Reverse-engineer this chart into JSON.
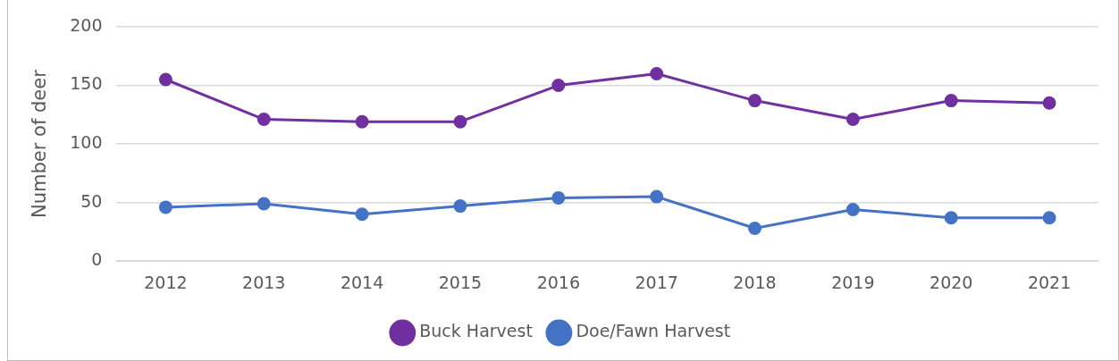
{
  "chart_data": {
    "type": "line",
    "ylabel": "Number of deer",
    "categories": [
      "2012",
      "2013",
      "2014",
      "2015",
      "2016",
      "2017",
      "2018",
      "2019",
      "2020",
      "2021"
    ],
    "series": [
      {
        "name": "Buck Harvest",
        "color": "#7030a0",
        "values": [
          155,
          121,
          119,
          119,
          150,
          160,
          137,
          121,
          137,
          135
        ]
      },
      {
        "name": "Doe/Fawn Harvest",
        "color": "#4472c4",
        "values": [
          46,
          49,
          40,
          47,
          54,
          55,
          28,
          44,
          37,
          37
        ]
      }
    ],
    "ylim": [
      0,
      200
    ],
    "yticks": [
      0,
      50,
      100,
      150,
      200
    ],
    "grid": "y",
    "legend": "bottom",
    "marker": "circle",
    "line_style": "solid"
  }
}
